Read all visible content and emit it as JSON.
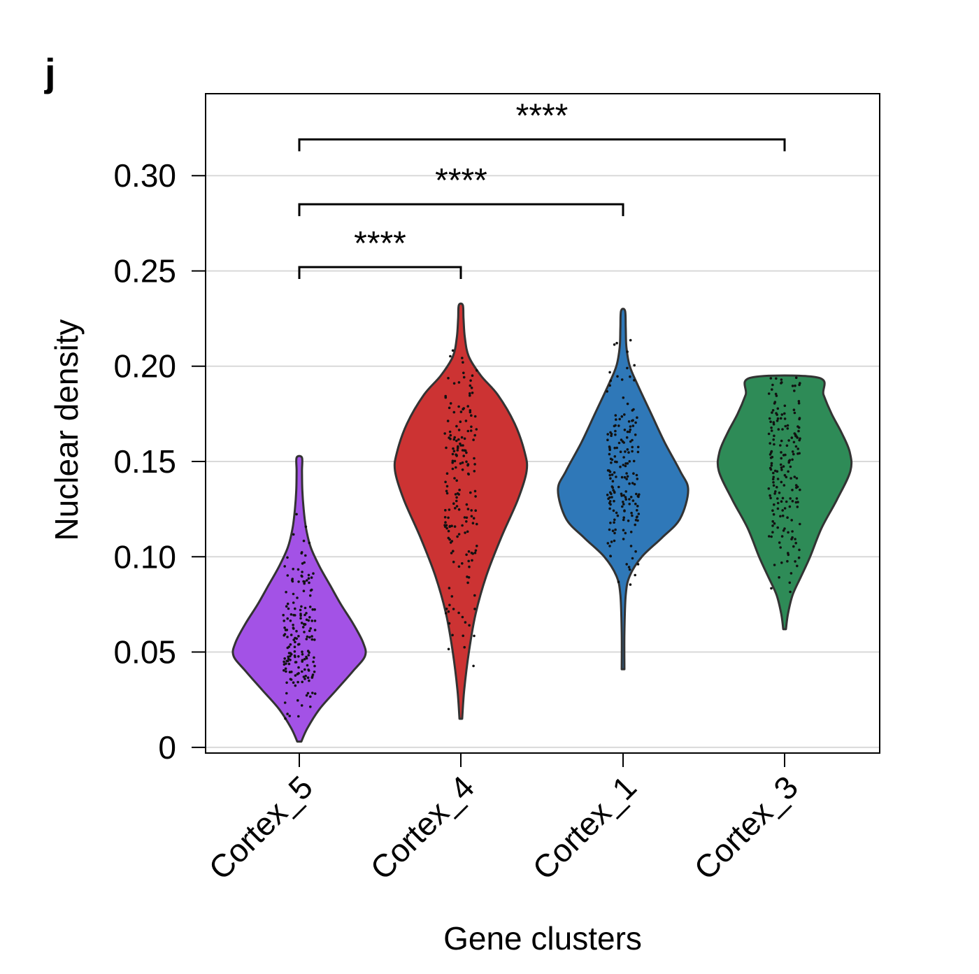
{
  "panel_label": "j",
  "chart_data": {
    "type": "violin",
    "title": "",
    "xlabel": "Gene clusters",
    "ylabel": "Nuclear density",
    "ylim": [
      -0.003,
      0.343
    ],
    "yticks": [
      0,
      0.05,
      0.1,
      0.15,
      0.2,
      0.25,
      0.3
    ],
    "ytick_labels": [
      "0",
      "0.05",
      "0.10",
      "0.15",
      "0.20",
      "0.25",
      "0.30"
    ],
    "grid": true,
    "categories": [
      "Cortex_5",
      "Cortex_4",
      "Cortex_1",
      "Cortex_3"
    ],
    "series": [
      {
        "name": "Cortex_5",
        "color": "#a352e6",
        "min": 0.003,
        "max": 0.152,
        "profile": [
          [
            0.003,
            0.03
          ],
          [
            0.01,
            0.12
          ],
          [
            0.02,
            0.3
          ],
          [
            0.03,
            0.55
          ],
          [
            0.04,
            0.8
          ],
          [
            0.048,
            0.98
          ],
          [
            0.055,
            0.95
          ],
          [
            0.065,
            0.8
          ],
          [
            0.075,
            0.62
          ],
          [
            0.085,
            0.46
          ],
          [
            0.095,
            0.3
          ],
          [
            0.105,
            0.17
          ],
          [
            0.115,
            0.1
          ],
          [
            0.125,
            0.065
          ],
          [
            0.135,
            0.045
          ],
          [
            0.145,
            0.04
          ],
          [
            0.152,
            0.04
          ]
        ],
        "point_range": [
          0.015,
          0.125
        ]
      },
      {
        "name": "Cortex_4",
        "color": "#cc3333",
        "min": 0.015,
        "max": 0.232,
        "profile": [
          [
            0.015,
            0.02
          ],
          [
            0.03,
            0.05
          ],
          [
            0.05,
            0.12
          ],
          [
            0.07,
            0.22
          ],
          [
            0.09,
            0.38
          ],
          [
            0.11,
            0.6
          ],
          [
            0.13,
            0.85
          ],
          [
            0.145,
            0.98
          ],
          [
            0.155,
            0.95
          ],
          [
            0.17,
            0.8
          ],
          [
            0.185,
            0.55
          ],
          [
            0.195,
            0.3
          ],
          [
            0.205,
            0.12
          ],
          [
            0.215,
            0.06
          ],
          [
            0.225,
            0.04
          ],
          [
            0.232,
            0.03
          ]
        ],
        "point_range": [
          0.04,
          0.215
        ]
      },
      {
        "name": "Cortex_1",
        "color": "#2f78b8",
        "min": 0.041,
        "max": 0.229,
        "profile": [
          [
            0.041,
            0.02
          ],
          [
            0.06,
            0.02
          ],
          [
            0.08,
            0.04
          ],
          [
            0.09,
            0.1
          ],
          [
            0.1,
            0.28
          ],
          [
            0.11,
            0.58
          ],
          [
            0.12,
            0.85
          ],
          [
            0.135,
            0.97
          ],
          [
            0.145,
            0.85
          ],
          [
            0.16,
            0.62
          ],
          [
            0.175,
            0.42
          ],
          [
            0.19,
            0.22
          ],
          [
            0.2,
            0.1
          ],
          [
            0.21,
            0.05
          ],
          [
            0.22,
            0.04
          ],
          [
            0.229,
            0.03
          ]
        ],
        "point_range": [
          0.085,
          0.215
        ]
      },
      {
        "name": "Cortex_3",
        "color": "#2e8b57",
        "min": 0.062,
        "max": 0.194,
        "profile": [
          [
            0.062,
            0.02
          ],
          [
            0.07,
            0.05
          ],
          [
            0.08,
            0.12
          ],
          [
            0.09,
            0.25
          ],
          [
            0.1,
            0.38
          ],
          [
            0.115,
            0.55
          ],
          [
            0.13,
            0.78
          ],
          [
            0.145,
            0.98
          ],
          [
            0.155,
            0.97
          ],
          [
            0.165,
            0.85
          ],
          [
            0.175,
            0.7
          ],
          [
            0.185,
            0.58
          ],
          [
            0.194,
            0.5
          ]
        ],
        "point_range": [
          0.07,
          0.194
        ]
      }
    ],
    "significance": [
      {
        "from": "Cortex_5",
        "to": "Cortex_4",
        "level": 0.252,
        "label": "****"
      },
      {
        "from": "Cortex_5",
        "to": "Cortex_1",
        "level": 0.285,
        "label": "****"
      },
      {
        "from": "Cortex_5",
        "to": "Cortex_3",
        "level": 0.319,
        "label": "****"
      }
    ]
  }
}
